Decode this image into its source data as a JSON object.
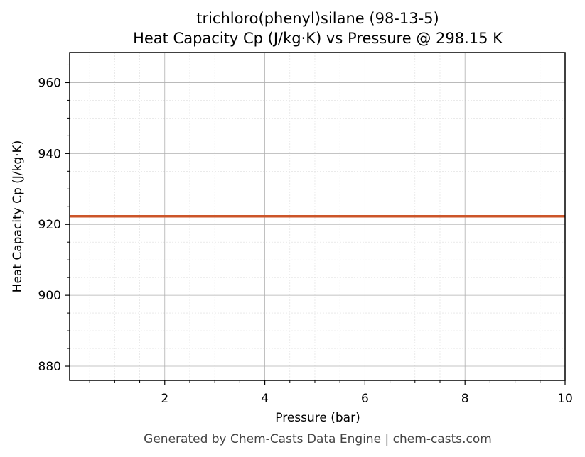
{
  "chart_data": {
    "type": "line",
    "title": "trichloro(phenyl)silane (98-13-5)",
    "subtitle": "Heat Capacity Cp (J/kg·K) vs Pressure @ 298.15 K",
    "xlabel": "Pressure (bar)",
    "ylabel": "Heat Capacity Cp (J/kg·K)",
    "xlim": [
      0.1,
      10
    ],
    "ylim": [
      876,
      968.5
    ],
    "x_ticks": [
      2,
      4,
      6,
      8,
      10
    ],
    "y_ticks": [
      880,
      900,
      920,
      940,
      960
    ],
    "x_minor_step": 0.5,
    "y_minor_step": 5,
    "grid": true,
    "series": [
      {
        "x": [
          0.1,
          10
        ],
        "y": [
          922.3,
          922.3
        ],
        "color": "#cc5529"
      }
    ]
  },
  "footer": "Generated by Chem-Casts Data Engine | chem-casts.com"
}
